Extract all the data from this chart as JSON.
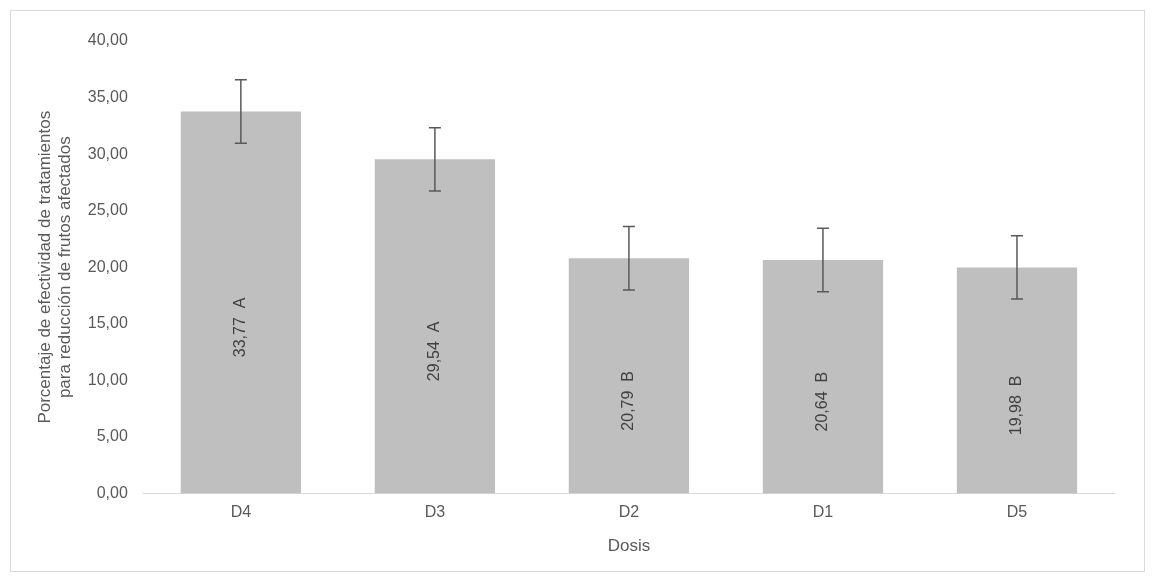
{
  "chart_data": {
    "type": "bar",
    "xlabel": "Dosis",
    "ylabel": "Porcentaje de efectividad de tratamientos para reducción de frutos afectados",
    "categories": [
      "D4",
      "D3",
      "D2",
      "D1",
      "D5"
    ],
    "values": [
      33.77,
      29.54,
      20.79,
      20.64,
      19.98
    ],
    "value_labels": [
      "33,77  A",
      "29,54  A",
      "20,79  B",
      "20,64  B",
      "19,98  B"
    ],
    "errors": [
      2.8,
      2.8,
      2.8,
      2.8,
      2.8
    ],
    "color": "#bfbfbf",
    "ylim": [
      0,
      40
    ],
    "yticks": [
      {
        "value": 0,
        "label": "0,00"
      },
      {
        "value": 5,
        "label": "5,00"
      },
      {
        "value": 10,
        "label": "10,00"
      },
      {
        "value": 15,
        "label": "15,00"
      },
      {
        "value": 20,
        "label": "20,00"
      },
      {
        "value": 25,
        "label": "25,00"
      },
      {
        "value": 30,
        "label": "30,00"
      },
      {
        "value": 35,
        "label": "35,00"
      },
      {
        "value": 40,
        "label": "40,00"
      }
    ],
    "grid": false,
    "legend": false
  }
}
